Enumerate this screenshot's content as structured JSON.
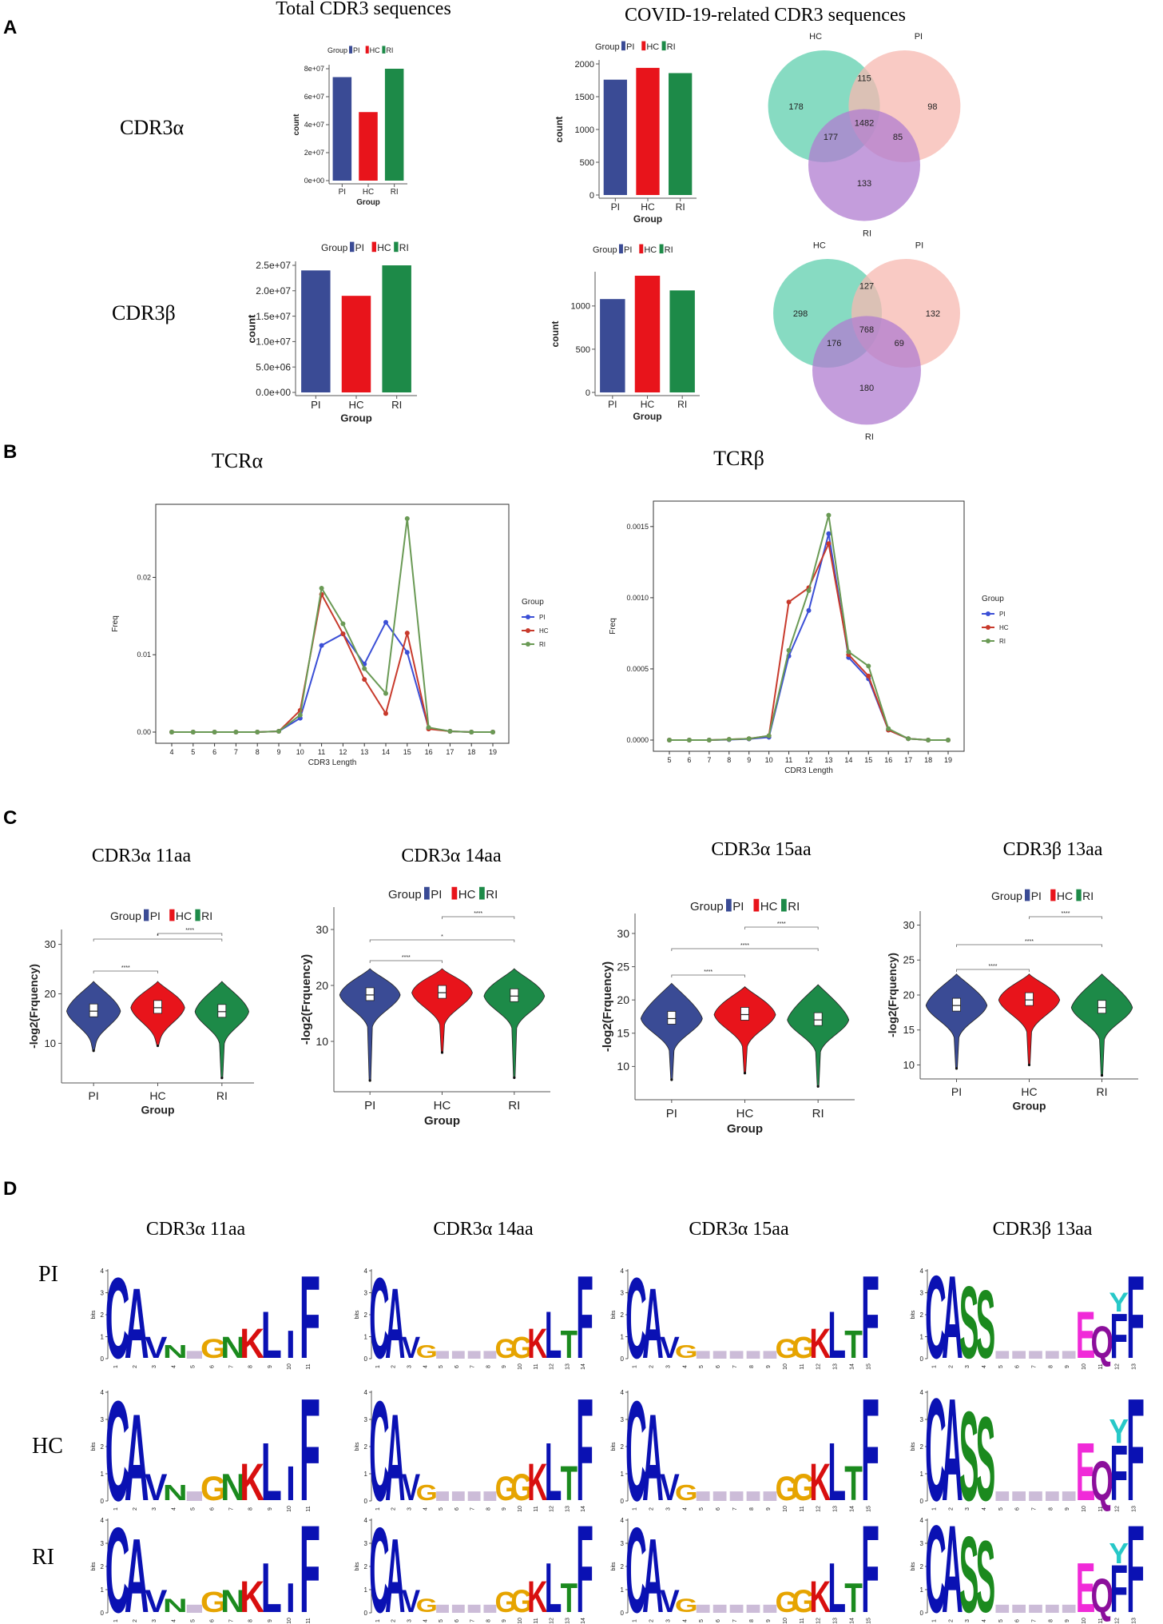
{
  "panels": {
    "a": "A",
    "b": "B",
    "c": "C",
    "d": "D"
  },
  "colors": {
    "PI": "#3a4b95",
    "HC": "#e8141b",
    "RI": "#1d8a48",
    "line_PI": "#3b4fd6",
    "line_HC": "#c83a2c",
    "line_RI": "#6a9a55",
    "venn_HC": "#5fcfae",
    "venn_PI": "#f7b8b0",
    "venn_RI": "#b07cd0"
  },
  "legend": {
    "title": "Group",
    "groups": [
      "PI",
      "HC",
      "RI"
    ]
  },
  "panel_a": {
    "col_titles": [
      "Total CDR3 sequences",
      "COVID-19-related CDR3 sequences"
    ],
    "row_labels": [
      "CDR3α",
      "CDR3β"
    ],
    "xlabel": "Group",
    "ylabel": "count"
  },
  "panel_b": {
    "titles": [
      "TCRα",
      "TCRβ"
    ],
    "xlabel": "CDR3 Length",
    "ylabel": "Freq"
  },
  "panel_c": {
    "titles": [
      "CDR3α 11aa",
      "CDR3α 14aa",
      "CDR3α 15aa",
      "CDR3β 13aa"
    ],
    "ylabel": "-log2(Frquency)",
    "xlabel": "Group",
    "sig": [
      "****",
      "*",
      "****"
    ]
  },
  "panel_d": {
    "col_titles": [
      "CDR3α 11aa",
      "CDR3α 14aa",
      "CDR3α 15aa",
      "CDR3β 13aa"
    ],
    "row_labels": [
      "PI",
      "HC",
      "RI"
    ],
    "ylabel": "bits",
    "motif_cols": [
      {
        "length": 11,
        "letters": [
          "C",
          "A",
          "V",
          "N",
          "G",
          "N",
          "K",
          "L",
          "I",
          "F"
        ]
      },
      {
        "length": 14,
        "letters": [
          "C",
          "A",
          "V",
          "G",
          "G",
          "G",
          "K",
          "L",
          "T",
          "F"
        ]
      },
      {
        "length": 15,
        "letters": [
          "C",
          "A",
          "V",
          "G",
          "G",
          "G",
          "K",
          "L",
          "T",
          "F"
        ]
      },
      {
        "length": 13,
        "letters": [
          "C",
          "A",
          "S",
          "S",
          "E",
          "Q",
          "F",
          "Y",
          "F"
        ]
      }
    ]
  },
  "chart_data": [
    {
      "type": "bar",
      "title": "Total CDR3 sequences",
      "row": "CDR3α",
      "xlabel": "Group",
      "ylabel": "count",
      "categories": [
        "PI",
        "HC",
        "RI"
      ],
      "values": [
        74000000,
        49000000,
        80000000
      ],
      "ylim": [
        0,
        80000000
      ],
      "ticks": [
        0,
        20000000,
        40000000,
        60000000,
        80000000
      ],
      "tick_labels": [
        "0e+00",
        "2e+07",
        "4e+07",
        "6e+07",
        "8e+07"
      ],
      "legend": "top"
    },
    {
      "type": "bar",
      "title": "COVID-19-related CDR3 sequences",
      "row": "CDR3α",
      "xlabel": "Group",
      "ylabel": "count",
      "categories": [
        "PI",
        "HC",
        "RI"
      ],
      "values": [
        1760,
        1940,
        1860
      ],
      "ylim": [
        0,
        2000
      ],
      "ticks": [
        0,
        500,
        1000,
        1500,
        2000
      ],
      "tick_labels": [
        "0",
        "500",
        "1000",
        "1500",
        "2000"
      ],
      "legend": "top"
    },
    {
      "type": "venn",
      "row": "CDR3α",
      "sets": [
        "HC",
        "PI",
        "RI"
      ],
      "regions": {
        "HC_only": 178,
        "PI_only": 98,
        "RI_only": 133,
        "HC_PI": 115,
        "HC_RI": 177,
        "PI_RI": 85,
        "all": 1482
      }
    },
    {
      "type": "bar",
      "title": "Total CDR3 sequences",
      "row": "CDR3β",
      "xlabel": "Group",
      "ylabel": "count",
      "categories": [
        "PI",
        "HC",
        "RI"
      ],
      "values": [
        24000000,
        19000000,
        25000000
      ],
      "ylim": [
        0,
        25000000
      ],
      "ticks": [
        0,
        5000000,
        10000000,
        15000000,
        20000000,
        25000000
      ],
      "tick_labels": [
        "0.0e+00",
        "5.0e+06",
        "1.0e+07",
        "1.5e+07",
        "2.0e+07",
        "2.5e+07"
      ],
      "legend": "top"
    },
    {
      "type": "bar",
      "title": "COVID-19-related CDR3 sequences",
      "row": "CDR3β",
      "xlabel": "Group",
      "ylabel": "count",
      "categories": [
        "PI",
        "HC",
        "RI"
      ],
      "values": [
        1080,
        1350,
        1180
      ],
      "ylim": [
        0,
        1350
      ],
      "ticks": [
        0,
        500,
        1000
      ],
      "tick_labels": [
        "0",
        "500",
        "1000"
      ],
      "legend": "top"
    },
    {
      "type": "venn",
      "row": "CDR3β",
      "sets": [
        "HC",
        "PI",
        "RI"
      ],
      "regions": {
        "HC_only": 298,
        "PI_only": 132,
        "RI_only": 180,
        "HC_PI": 127,
        "HC_RI": 176,
        "PI_RI": 69,
        "all": 768
      }
    },
    {
      "type": "line",
      "title": "TCRα",
      "xlabel": "CDR3 Length",
      "ylabel": "Freq",
      "x": [
        4,
        5,
        6,
        7,
        8,
        9,
        10,
        11,
        12,
        13,
        14,
        15,
        16,
        17,
        18,
        19
      ],
      "ylim": [
        0,
        0.028
      ],
      "yticks": [
        0,
        0.01,
        0.02
      ],
      "ytick_labels": [
        "0.00",
        "0.01",
        "0.02"
      ],
      "series": [
        {
          "name": "PI",
          "values": [
            0,
            0,
            0,
            0,
            0,
            0.0001,
            0.0018,
            0.0112,
            0.0127,
            0.0088,
            0.0142,
            0.0103,
            0.0005,
            0.0001,
            0,
            0
          ]
        },
        {
          "name": "HC",
          "values": [
            0,
            0,
            0,
            0,
            0,
            0.0001,
            0.0028,
            0.0178,
            0.0127,
            0.0068,
            0.0024,
            0.0128,
            0.0004,
            0.0001,
            0,
            0
          ]
        },
        {
          "name": "RI",
          "values": [
            0,
            0,
            0,
            0,
            0,
            0.0001,
            0.0022,
            0.0186,
            0.014,
            0.0082,
            0.005,
            0.0276,
            0.0006,
            0.0001,
            0,
            0
          ]
        }
      ],
      "legend": "right"
    },
    {
      "type": "line",
      "title": "TCRβ",
      "xlabel": "CDR3 Length",
      "ylabel": "Freq",
      "x": [
        5,
        6,
        7,
        8,
        9,
        10,
        11,
        12,
        13,
        14,
        15,
        16,
        17,
        18,
        19
      ],
      "ylim": [
        0,
        0.0016
      ],
      "yticks": [
        0,
        0.0005,
        0.001,
        0.0015
      ],
      "ytick_labels": [
        "0.0000",
        "0.0005",
        "0.0010",
        "0.0015"
      ],
      "series": [
        {
          "name": "PI",
          "values": [
            0,
            0,
            0,
            3e-06,
            8e-06,
            2e-05,
            0.00059,
            0.00091,
            0.00145,
            0.00058,
            0.00043,
            7e-05,
            1e-05,
            0,
            0
          ]
        },
        {
          "name": "HC",
          "values": [
            0,
            0,
            0,
            5e-06,
            1e-05,
            3e-05,
            0.00097,
            0.00107,
            0.00138,
            0.0006,
            0.00045,
            7e-05,
            1e-05,
            0,
            0
          ]
        },
        {
          "name": "RI",
          "values": [
            0,
            0,
            0,
            5e-06,
            1e-05,
            3e-05,
            0.00063,
            0.00105,
            0.00158,
            0.00062,
            0.00052,
            8e-05,
            1e-05,
            0,
            0
          ]
        }
      ],
      "legend": "right"
    },
    {
      "type": "violin",
      "title": "CDR3α 11aa",
      "xlabel": "Group",
      "ylabel": "-log2(Frquency)",
      "categories": [
        "PI",
        "HC",
        "RI"
      ],
      "ylim": [
        2,
        33
      ],
      "yticks": [
        10,
        20,
        30
      ],
      "medians": [
        16.5,
        17.2,
        16.4
      ],
      "min": [
        8.5,
        9.5,
        3
      ],
      "max": [
        22.5,
        22.5,
        22.5
      ]
    },
    {
      "type": "violin",
      "title": "CDR3α 14aa",
      "xlabel": "Group",
      "ylabel": "-log2(Frquency)",
      "categories": [
        "PI",
        "HC",
        "RI"
      ],
      "ylim": [
        1,
        34
      ],
      "yticks": [
        10,
        20,
        30
      ],
      "medians": [
        18.3,
        18.7,
        18.1
      ],
      "min": [
        3,
        8,
        3.5
      ],
      "max": [
        23,
        23,
        23
      ]
    },
    {
      "type": "violin",
      "title": "CDR3α 15aa",
      "xlabel": "Group",
      "ylabel": "-log2(Frquency)",
      "categories": [
        "PI",
        "HC",
        "RI"
      ],
      "ylim": [
        5,
        33
      ],
      "yticks": [
        10,
        15,
        20,
        25,
        30
      ],
      "medians": [
        17.2,
        17.8,
        17.0
      ],
      "min": [
        8,
        9,
        7
      ],
      "max": [
        22.5,
        22,
        22.3
      ]
    },
    {
      "type": "violin",
      "title": "CDR3β 13aa",
      "xlabel": "Group",
      "ylabel": "-log2(Frquency)",
      "categories": [
        "PI",
        "HC",
        "RI"
      ],
      "ylim": [
        8,
        32
      ],
      "yticks": [
        10,
        15,
        20,
        25,
        30
      ],
      "medians": [
        18.5,
        19.3,
        18.2
      ],
      "min": [
        9.5,
        10,
        8.5
      ],
      "max": [
        23,
        23,
        23
      ]
    }
  ]
}
